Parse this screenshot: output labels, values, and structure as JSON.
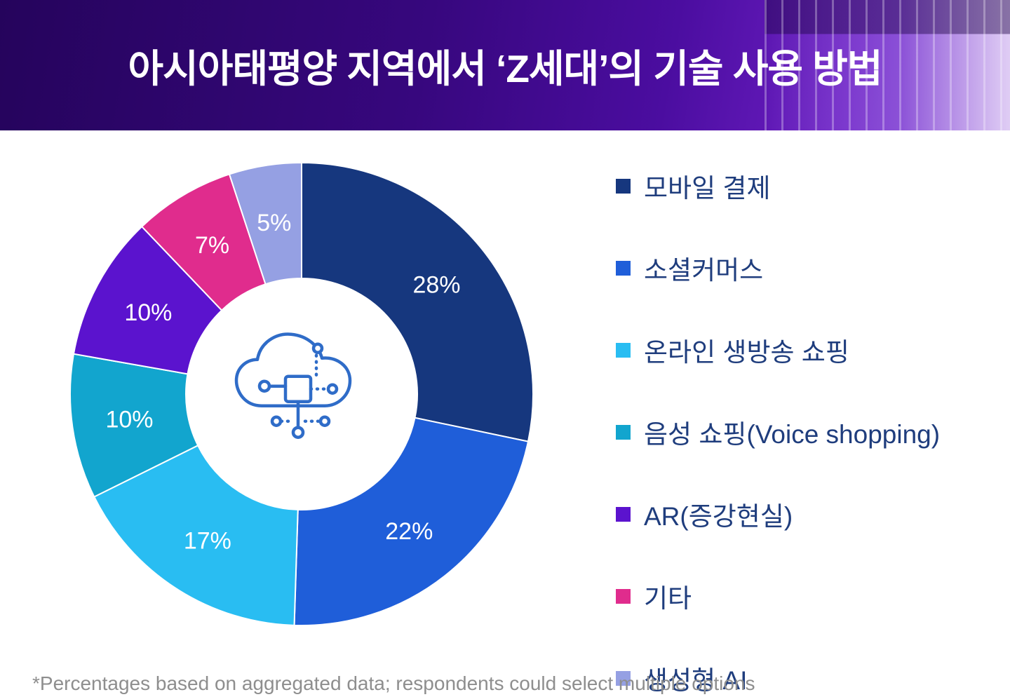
{
  "header": {
    "title": "아시아태평양 지역에서 ‘Z세대’의 기술 사용 방법"
  },
  "chart_data": {
    "type": "pie",
    "subtype": "donut",
    "title": "아시아태평양 지역에서 ‘Z세대’의 기술 사용 방법",
    "categories": [
      "모바일 결제",
      "소셜커머스",
      "온라인 생방송 쇼핑",
      "음성 쇼핑(Voice shopping)",
      "AR(증강현실)",
      "기타",
      "생성형 AI"
    ],
    "values": [
      28,
      22,
      17,
      10,
      10,
      7,
      5
    ],
    "labels": [
      "28%",
      "22%",
      "17%",
      "10%",
      "10%",
      "7%",
      "5%"
    ],
    "colors": [
      "#16377e",
      "#1f5ed9",
      "#29bdf2",
      "#12a5ce",
      "#5b13ce",
      "#e02c8d",
      "#95a0e3"
    ],
    "legend_position": "right",
    "center_icon": "cloud-circuit-icon",
    "icon_color": "#2f6cc8",
    "slice_label_color": "#ffffff"
  },
  "footer": {
    "note": "*Percentages based on aggregated data; respondents could select multiple options"
  }
}
